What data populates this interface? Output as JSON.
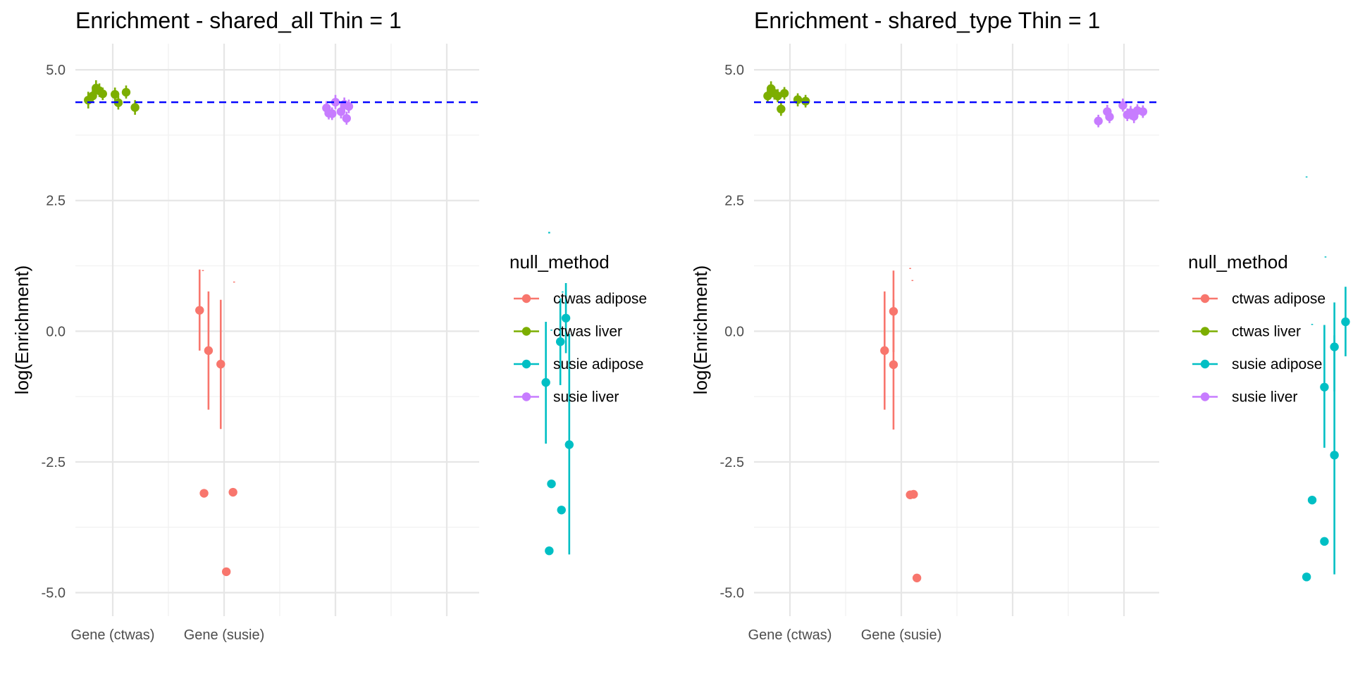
{
  "chart_data": [
    {
      "type": "scatter",
      "title": "Enrichment - shared_all Thin = 1",
      "ylabel": "log(Enrichment)",
      "xlabel": "",
      "ylim": [
        -5.45,
        5.5
      ],
      "yticks": [
        5.0,
        2.5,
        0.0,
        -2.5,
        -5.0
      ],
      "ytick_labels": [
        "5.0",
        "2.5",
        "0.0",
        "-2.5",
        "-5.0"
      ],
      "categories": [
        "Gene (ctwas)",
        "Gene (susie)",
        "",
        ""
      ],
      "category_labels_printed": [
        "Gene (ctwas)",
        "Gene (susie)"
      ],
      "reference_line": {
        "y": 4.38,
        "color": "#0000ff",
        "style": "dashed"
      },
      "grid": true,
      "legend": {
        "title": "null_method",
        "placement": "right"
      },
      "series": [
        {
          "name": "ctwas adipose",
          "color": "#F8766D",
          "points": [
            {
              "x": 1.78,
              "y": 0.4,
              "lo": -0.37,
              "hi": 1.18
            },
            {
              "x": 1.86,
              "y": -0.37,
              "lo": -1.5,
              "hi": 0.76
            },
            {
              "x": 1.97,
              "y": -0.63,
              "lo": -1.87,
              "hi": 0.6
            },
            {
              "x": 1.81,
              "y": 1.16,
              "lo": 1.15,
              "hi": 1.17
            },
            {
              "x": 2.09,
              "y": 0.94,
              "lo": 0.93,
              "hi": 0.95
            },
            {
              "x": 1.82,
              "y": -3.1
            },
            {
              "x": 2.08,
              "y": -3.08
            },
            {
              "x": 2.02,
              "y": -4.6
            }
          ]
        },
        {
          "name": "ctwas liver",
          "color": "#7CAE00",
          "points": [
            {
              "x": 0.78,
              "y": 4.42,
              "lo": 4.26,
              "hi": 4.58
            },
            {
              "x": 0.82,
              "y": 4.5,
              "lo": 4.38,
              "hi": 4.66
            },
            {
              "x": 0.85,
              "y": 4.65,
              "lo": 4.5,
              "hi": 4.8
            },
            {
              "x": 0.88,
              "y": 4.6,
              "lo": 4.48,
              "hi": 4.74
            },
            {
              "x": 0.91,
              "y": 4.54,
              "lo": 4.42,
              "hi": 4.66
            },
            {
              "x": 1.02,
              "y": 4.53,
              "lo": 4.4,
              "hi": 4.66
            },
            {
              "x": 1.05,
              "y": 4.37,
              "lo": 4.24,
              "hi": 4.5
            },
            {
              "x": 1.12,
              "y": 4.57,
              "lo": 4.45,
              "hi": 4.7
            },
            {
              "x": 1.2,
              "y": 4.28,
              "lo": 4.14,
              "hi": 4.42
            }
          ]
        },
        {
          "name": "susie adipose",
          "color": "#00BFC4",
          "points": [
            {
              "x": 4.89,
              "y": -0.98,
              "lo": -2.15,
              "hi": 0.18
            },
            {
              "x": 4.92,
              "y": 1.88,
              "lo": 1.87,
              "hi": 1.9
            },
            {
              "x": 4.94,
              "y": 0.02,
              "lo": 0.01,
              "hi": 0.03
            },
            {
              "x": 5.02,
              "y": -0.2,
              "lo": -1.03,
              "hi": 0.63
            },
            {
              "x": 5.04,
              "y": 0.75,
              "lo": 0.74,
              "hi": 0.76
            },
            {
              "x": 5.07,
              "y": 0.25,
              "lo": -0.42,
              "hi": 0.92
            },
            {
              "x": 5.1,
              "y": -2.17,
              "lo": -4.27,
              "hi": -0.05
            },
            {
              "x": 4.94,
              "y": -2.92
            },
            {
              "x": 5.03,
              "y": -3.42
            },
            {
              "x": 4.92,
              "y": -4.2
            }
          ]
        },
        {
          "name": "susie liver",
          "color": "#C77CFF",
          "points": [
            {
              "x": 2.92,
              "y": 4.27,
              "lo": 4.14,
              "hi": 4.4
            },
            {
              "x": 2.94,
              "y": 4.17,
              "lo": 4.05,
              "hi": 4.3
            },
            {
              "x": 2.97,
              "y": 4.16,
              "lo": 4.04,
              "hi": 4.28
            },
            {
              "x": 3.0,
              "y": 4.38,
              "lo": 4.25,
              "hi": 4.52
            },
            {
              "x": 3.05,
              "y": 4.2,
              "lo": 4.07,
              "hi": 4.33
            },
            {
              "x": 3.08,
              "y": 4.34,
              "lo": 4.2,
              "hi": 4.47
            },
            {
              "x": 3.1,
              "y": 4.07,
              "lo": 3.95,
              "hi": 4.2
            },
            {
              "x": 3.12,
              "y": 4.3,
              "lo": 4.17,
              "hi": 4.43
            }
          ]
        }
      ]
    },
    {
      "type": "scatter",
      "title": "Enrichment - shared_type Thin = 1",
      "ylabel": "log(Enrichment)",
      "xlabel": "",
      "ylim": [
        -5.45,
        5.5
      ],
      "yticks": [
        5.0,
        2.5,
        0.0,
        -2.5,
        -5.0
      ],
      "ytick_labels": [
        "5.0",
        "2.5",
        "0.0",
        "-2.5",
        "-5.0"
      ],
      "categories": [
        "Gene (ctwas)",
        "Gene (susie)",
        "",
        "",
        ""
      ],
      "category_labels_printed": [
        "Gene (ctwas)",
        "Gene (susie)"
      ],
      "reference_line": {
        "y": 4.38,
        "color": "#0000ff",
        "style": "dashed"
      },
      "grid": true,
      "legend": {
        "title": "null_method",
        "placement": "right"
      },
      "series": [
        {
          "name": "ctwas adipose",
          "color": "#F8766D",
          "points": [
            {
              "x": 1.85,
              "y": -0.37,
              "lo": -1.5,
              "hi": 0.76
            },
            {
              "x": 1.93,
              "y": 0.38,
              "lo": -0.4,
              "hi": 1.16
            },
            {
              "x": 1.93,
              "y": -0.64,
              "lo": -1.88,
              "hi": 0.6
            },
            {
              "x": 2.08,
              "y": 1.2,
              "lo": 1.19,
              "hi": 1.21
            },
            {
              "x": 2.1,
              "y": 0.97,
              "lo": 0.96,
              "hi": 0.98
            },
            {
              "x": 2.08,
              "y": -3.13
            },
            {
              "x": 2.11,
              "y": -3.12
            },
            {
              "x": 2.14,
              "y": -4.72
            }
          ]
        },
        {
          "name": "ctwas liver",
          "color": "#7CAE00",
          "points": [
            {
              "x": 0.8,
              "y": 4.5,
              "lo": 4.38,
              "hi": 4.62
            },
            {
              "x": 0.83,
              "y": 4.64,
              "lo": 4.5,
              "hi": 4.78
            },
            {
              "x": 0.86,
              "y": 4.55,
              "lo": 4.43,
              "hi": 4.68
            },
            {
              "x": 0.89,
              "y": 4.5,
              "lo": 4.38,
              "hi": 4.63
            },
            {
              "x": 0.92,
              "y": 4.25,
              "lo": 4.12,
              "hi": 4.4
            },
            {
              "x": 0.95,
              "y": 4.55,
              "lo": 4.43,
              "hi": 4.67
            },
            {
              "x": 1.07,
              "y": 4.43,
              "lo": 4.3,
              "hi": 4.55
            },
            {
              "x": 1.14,
              "y": 4.4,
              "lo": 4.28,
              "hi": 4.52
            }
          ]
        },
        {
          "name": "susie adipose",
          "color": "#00BFC4",
          "points": [
            {
              "x": 5.64,
              "y": 2.95,
              "lo": 2.94,
              "hi": 2.96
            },
            {
              "x": 5.81,
              "y": 1.42,
              "lo": 1.41,
              "hi": 1.43
            },
            {
              "x": 5.69,
              "y": 0.13,
              "lo": 0.12,
              "hi": 0.14
            },
            {
              "x": 5.8,
              "y": -1.07,
              "lo": -2.23,
              "hi": 0.12
            },
            {
              "x": 5.89,
              "y": -0.3,
              "lo": -1.15,
              "hi": 0.55
            },
            {
              "x": 5.89,
              "y": -2.37,
              "lo": -4.65,
              "hi": -0.08
            },
            {
              "x": 5.99,
              "y": 0.18,
              "lo": -0.48,
              "hi": 0.85
            },
            {
              "x": 5.69,
              "y": -3.23
            },
            {
              "x": 5.8,
              "y": -4.02
            },
            {
              "x": 5.64,
              "y": -4.7
            }
          ]
        },
        {
          "name": "susie liver",
          "color": "#C77CFF",
          "points": [
            {
              "x": 3.77,
              "y": 4.02,
              "lo": 3.9,
              "hi": 4.14
            },
            {
              "x": 3.85,
              "y": 4.2,
              "lo": 4.08,
              "hi": 4.33
            },
            {
              "x": 3.87,
              "y": 4.1,
              "lo": 3.98,
              "hi": 4.22
            },
            {
              "x": 3.99,
              "y": 4.32,
              "lo": 4.2,
              "hi": 4.45
            },
            {
              "x": 4.03,
              "y": 4.14,
              "lo": 4.02,
              "hi": 4.26
            },
            {
              "x": 4.06,
              "y": 4.18,
              "lo": 4.05,
              "hi": 4.31
            },
            {
              "x": 4.09,
              "y": 4.11,
              "lo": 3.98,
              "hi": 4.24
            },
            {
              "x": 4.12,
              "y": 4.22,
              "lo": 4.1,
              "hi": 4.34
            },
            {
              "x": 4.17,
              "y": 4.2,
              "lo": 4.08,
              "hi": 4.32
            }
          ]
        }
      ]
    }
  ]
}
